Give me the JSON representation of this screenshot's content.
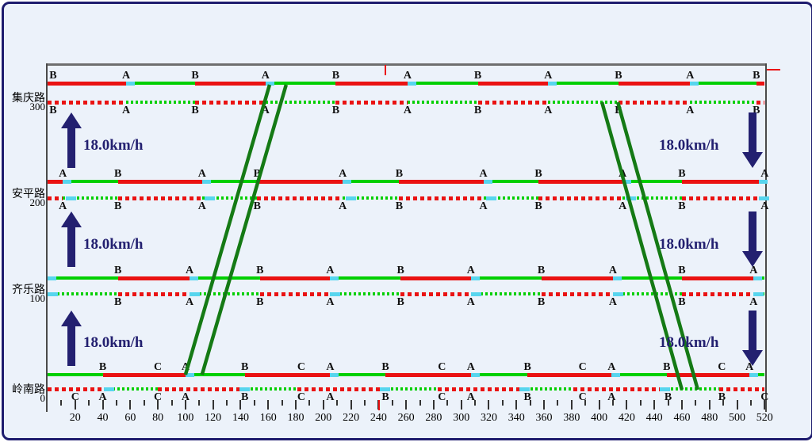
{
  "chart_data": {
    "type": "line",
    "subtype": "traffic-signal-time-space-diagram",
    "title": "",
    "xlabel": "",
    "ylabel": "",
    "x_range": [
      0,
      520
    ],
    "x_major_tick_step": 20,
    "x_minor_tick_step": 10,
    "x_tick_labels": [
      20,
      40,
      60,
      80,
      100,
      120,
      140,
      160,
      180,
      200,
      220,
      240,
      260,
      280,
      300,
      320,
      340,
      360,
      380,
      400,
      420,
      440,
      460,
      480,
      500,
      520
    ],
    "grid": "off",
    "cycle_marker_time": 240,
    "roads": [
      {
        "name": "集庆路",
        "position_label": "300",
        "position_m": 300,
        "solid_segments": [
          [
            "r",
            0,
            57
          ],
          [
            "g",
            57,
            107
          ],
          [
            "r",
            107,
            158
          ],
          [
            "g",
            158,
            209
          ],
          [
            "r",
            209,
            261
          ],
          [
            "g",
            261,
            312
          ],
          [
            "r",
            312,
            363
          ],
          [
            "g",
            363,
            414
          ],
          [
            "r",
            414,
            466
          ],
          [
            "g",
            466,
            514
          ],
          [
            "r",
            514,
            520
          ]
        ],
        "solid_letters": [
          [
            4,
            "B"
          ],
          [
            57,
            "A"
          ],
          [
            107,
            "B"
          ],
          [
            158,
            "A"
          ],
          [
            209,
            "B"
          ],
          [
            261,
            "A"
          ],
          [
            312,
            "B"
          ],
          [
            363,
            "A"
          ],
          [
            414,
            "B"
          ],
          [
            466,
            "A"
          ],
          [
            514,
            "B"
          ]
        ],
        "solid_markers": [
          57,
          158,
          261,
          363,
          466
        ],
        "dotted_letters": [
          [
            4,
            "B"
          ],
          [
            57,
            "A"
          ],
          [
            107,
            "B"
          ],
          [
            158,
            "A"
          ],
          [
            209,
            "B"
          ],
          [
            261,
            "A"
          ],
          [
            312,
            "B"
          ],
          [
            363,
            "A"
          ],
          [
            414,
            "B"
          ],
          [
            466,
            "A"
          ],
          [
            514,
            "B"
          ]
        ],
        "dotted_markers": []
      },
      {
        "name": "安平路",
        "position_label": "200",
        "position_m": 200,
        "solid_segments": [
          [
            "r",
            0,
            11
          ],
          [
            "g",
            11,
            51
          ],
          [
            "r",
            51,
            112
          ],
          [
            "g",
            112,
            152
          ],
          [
            "r",
            152,
            214
          ],
          [
            "g",
            214,
            255
          ],
          [
            "r",
            255,
            316
          ],
          [
            "g",
            316,
            356
          ],
          [
            "r",
            356,
            417
          ],
          [
            "g",
            417,
            460
          ],
          [
            "r",
            460,
            520
          ]
        ],
        "solid_letters": [
          [
            11,
            "A"
          ],
          [
            51,
            "B"
          ],
          [
            112,
            "A"
          ],
          [
            152,
            "B"
          ],
          [
            214,
            "A"
          ],
          [
            255,
            "B"
          ],
          [
            316,
            "A"
          ],
          [
            356,
            "B"
          ],
          [
            417,
            "A"
          ],
          [
            460,
            "B"
          ],
          [
            520,
            "A"
          ]
        ],
        "solid_markers": [
          11,
          112,
          214,
          316,
          417,
          516
        ],
        "dotted_letters": [
          [
            11,
            "A"
          ],
          [
            51,
            "B"
          ],
          [
            112,
            "A"
          ],
          [
            152,
            "B"
          ],
          [
            214,
            "A"
          ],
          [
            255,
            "B"
          ],
          [
            316,
            "A"
          ],
          [
            356,
            "B"
          ],
          [
            417,
            "A"
          ],
          [
            460,
            "B"
          ],
          [
            520,
            "A"
          ]
        ],
        "dotted_markers": [
          13,
          114,
          216,
          318,
          419,
          516
        ]
      },
      {
        "name": "齐乐路",
        "position_label": "100",
        "position_m": 100,
        "solid_segments": [
          [
            "g",
            0,
            51
          ],
          [
            "r",
            51,
            103
          ],
          [
            "g",
            103,
            154
          ],
          [
            "r",
            154,
            205
          ],
          [
            "g",
            205,
            256
          ],
          [
            "r",
            256,
            307
          ],
          [
            "g",
            307,
            358
          ],
          [
            "r",
            358,
            410
          ],
          [
            "g",
            410,
            460
          ],
          [
            "r",
            460,
            512
          ],
          [
            "g",
            512,
            520
          ]
        ],
        "solid_letters": [
          [
            51,
            "B"
          ],
          [
            103,
            "A"
          ],
          [
            154,
            "B"
          ],
          [
            205,
            "A"
          ],
          [
            256,
            "B"
          ],
          [
            307,
            "A"
          ],
          [
            358,
            "B"
          ],
          [
            410,
            "A"
          ],
          [
            460,
            "B"
          ],
          [
            512,
            "A"
          ]
        ],
        "solid_markers": [
          0,
          103,
          205,
          307,
          410,
          512
        ],
        "dotted_letters": [
          [
            51,
            "B"
          ],
          [
            103,
            "A"
          ],
          [
            154,
            "B"
          ],
          [
            205,
            "A"
          ],
          [
            256,
            "B"
          ],
          [
            307,
            "A"
          ],
          [
            358,
            "B"
          ],
          [
            410,
            "A"
          ],
          [
            460,
            "B"
          ],
          [
            512,
            "A"
          ]
        ],
        "dotted_markers": [
          0,
          103,
          205,
          307,
          410,
          512
        ]
      },
      {
        "name": "岭南路",
        "position_label": "0",
        "position_m": 0,
        "solid_segments": [
          [
            "g",
            0,
            40
          ],
          [
            "r",
            40,
            100
          ],
          [
            "g",
            100,
            143
          ],
          [
            "r",
            143,
            205
          ],
          [
            "g",
            205,
            245
          ],
          [
            "r",
            245,
            307
          ],
          [
            "g",
            307,
            348
          ],
          [
            "r",
            348,
            409
          ],
          [
            "g",
            409,
            449
          ],
          [
            "r",
            449,
            509
          ],
          [
            "g",
            509,
            520
          ]
        ],
        "solid_letters": [
          [
            40,
            "B"
          ],
          [
            80,
            "C"
          ],
          [
            100,
            "A"
          ],
          [
            143,
            "B"
          ],
          [
            184,
            "C"
          ],
          [
            205,
            "A"
          ],
          [
            245,
            "B"
          ],
          [
            286,
            "C"
          ],
          [
            307,
            "A"
          ],
          [
            348,
            "B"
          ],
          [
            388,
            "C"
          ],
          [
            409,
            "A"
          ],
          [
            449,
            "B"
          ],
          [
            489,
            "C"
          ],
          [
            509,
            "A"
          ]
        ],
        "solid_markers": [
          100,
          205,
          307,
          409,
          509
        ],
        "dotted_segments": [
          [
            "r",
            0,
            41
          ],
          [
            "g",
            47,
            80
          ],
          [
            "r",
            80,
            139
          ],
          [
            "g",
            147,
            181
          ],
          [
            "r",
            181,
            241
          ],
          [
            "g",
            249,
            283
          ],
          [
            "r",
            283,
            342
          ],
          [
            "g",
            350,
            381
          ],
          [
            "r",
            381,
            444
          ],
          [
            "g",
            452,
            487
          ],
          [
            "r",
            487,
            520
          ]
        ],
        "dotted_letters": [
          [
            20,
            "C"
          ],
          [
            40,
            "A"
          ],
          [
            80,
            "C"
          ],
          [
            100,
            "A"
          ],
          [
            143,
            "B"
          ],
          [
            184,
            "C"
          ],
          [
            205,
            "A"
          ],
          [
            245,
            "B"
          ],
          [
            286,
            "C"
          ],
          [
            307,
            "A"
          ],
          [
            348,
            "B"
          ],
          [
            388,
            "C"
          ],
          [
            409,
            "A"
          ],
          [
            450,
            "B"
          ],
          [
            489,
            "B"
          ],
          [
            520,
            "C"
          ]
        ],
        "dotted_markers": [
          41,
          139,
          241,
          342,
          444
        ]
      }
    ],
    "trajectories": [
      {
        "direction": "up",
        "t_start": 100,
        "t_end": 161,
        "from_m": 0,
        "to_m": 300,
        "attach": "solid"
      },
      {
        "direction": "up",
        "t_start": 112,
        "t_end": 173,
        "from_m": 0,
        "to_m": 300,
        "attach": "solid"
      },
      {
        "direction": "down",
        "t_start": 402,
        "t_end": 460,
        "from_m": 300,
        "to_m": 0,
        "attach": "dotted"
      },
      {
        "direction": "down",
        "t_start": 413.5,
        "t_end": 471.5,
        "from_m": 300,
        "to_m": 0,
        "attach": "dotted"
      }
    ],
    "speed_arrows": [
      {
        "side": "left",
        "slot": 0,
        "direction": "up",
        "label": "18.0km/h"
      },
      {
        "side": "left",
        "slot": 1,
        "direction": "up",
        "label": "18.0km/h"
      },
      {
        "side": "left",
        "slot": 2,
        "direction": "up",
        "label": "18.0km/h"
      },
      {
        "side": "right",
        "slot": 0,
        "direction": "down",
        "label": "18.0km/h"
      },
      {
        "side": "right",
        "slot": 1,
        "direction": "down",
        "label": "18.0km/h"
      },
      {
        "side": "right",
        "slot": 2,
        "direction": "down",
        "label": "18.0km/h"
      }
    ],
    "colors": {
      "background": "#ecf2fa",
      "frame": "#1e1c6e",
      "green_band": "#00cf00",
      "red_band": "#ea1212",
      "cyan_marker": "#57d5ee",
      "trajectory_green": "#157a15",
      "arrow_navy": "#232070",
      "letter_black": "#111111"
    }
  }
}
